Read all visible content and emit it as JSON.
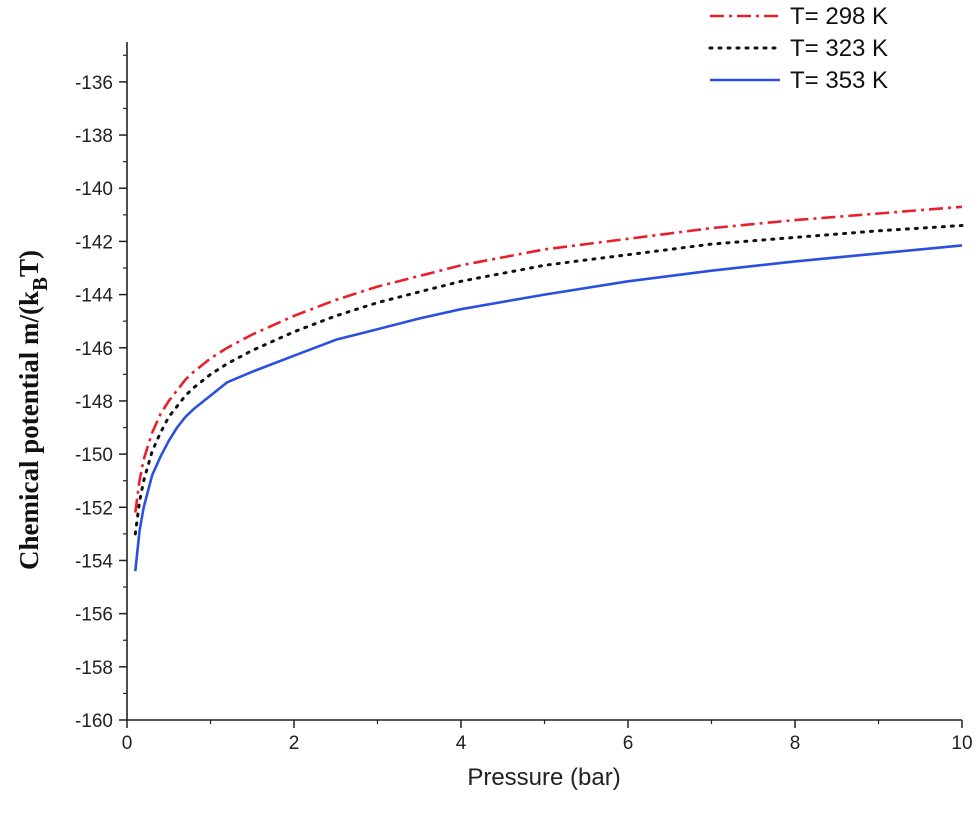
{
  "chart_data": {
    "type": "line",
    "title": "",
    "xlabel": "Pressure (bar)",
    "ylabel": {
      "prefix": "Chemical potential m/(k",
      "subscript": "B",
      "suffix": "T)"
    },
    "xlim": [
      0,
      10
    ],
    "ylim": [
      -160,
      -134.5
    ],
    "xticks": [
      0,
      2,
      4,
      6,
      8,
      10
    ],
    "yticks": [
      -160,
      -158,
      -156,
      -154,
      -152,
      -150,
      -148,
      -146,
      -144,
      -142,
      -140,
      -138,
      -136
    ],
    "xtick_labels": [
      "0",
      "2",
      "4",
      "6",
      "8",
      "10"
    ],
    "ytick_labels": [
      "-160",
      "-158",
      "-156",
      "-154",
      "-152",
      "-150",
      "-148",
      "-146",
      "-144",
      "-142",
      "-140",
      "-138",
      "-136"
    ],
    "grid": false,
    "legend_position": "top-right",
    "series": [
      {
        "name": "T= 298 K",
        "color": "#e8202a",
        "style": "dashdot",
        "x": [
          0.1,
          0.15,
          0.2,
          0.3,
          0.4,
          0.5,
          0.6,
          0.7,
          0.8,
          1,
          1.2,
          1.5,
          2,
          2.5,
          3,
          3.5,
          4,
          5,
          6,
          7,
          8,
          9,
          10
        ],
        "y": [
          -152.2,
          -151.0,
          -150.2,
          -149.2,
          -148.5,
          -148.0,
          -147.6,
          -147.2,
          -146.9,
          -146.4,
          -146.0,
          -145.5,
          -144.8,
          -144.2,
          -143.7,
          -143.3,
          -142.9,
          -142.3,
          -141.9,
          -141.5,
          -141.2,
          -140.95,
          -140.7
        ]
      },
      {
        "name": "T= 323 K",
        "color": "#111111",
        "style": "dotted",
        "x": [
          0.1,
          0.15,
          0.2,
          0.3,
          0.4,
          0.5,
          0.6,
          0.7,
          0.8,
          1,
          1.2,
          1.5,
          2,
          2.5,
          3,
          3.5,
          4,
          5,
          6,
          7,
          8,
          9,
          10
        ],
        "y": [
          -153.0,
          -151.8,
          -151.0,
          -149.9,
          -149.2,
          -148.6,
          -148.2,
          -147.8,
          -147.5,
          -147.0,
          -146.6,
          -146.1,
          -145.4,
          -144.8,
          -144.3,
          -143.9,
          -143.5,
          -142.9,
          -142.5,
          -142.1,
          -141.85,
          -141.6,
          -141.4
        ]
      },
      {
        "name": "T= 353 K",
        "color": "#2b50e0",
        "style": "solid",
        "x": [
          0.1,
          0.15,
          0.2,
          0.3,
          0.4,
          0.5,
          0.6,
          0.7,
          0.8,
          1,
          1.2,
          1.5,
          2,
          2.5,
          3,
          3.5,
          4,
          5,
          6,
          7,
          8,
          9,
          10
        ],
        "y": [
          -154.4,
          -152.9,
          -152.0,
          -150.8,
          -150.1,
          -149.5,
          -149.0,
          -148.6,
          -148.3,
          -147.8,
          -147.3,
          -146.9,
          -146.3,
          -145.7,
          -145.3,
          -144.9,
          -144.55,
          -144.0,
          -143.5,
          -143.1,
          -142.75,
          -142.45,
          -142.15
        ]
      }
    ]
  }
}
